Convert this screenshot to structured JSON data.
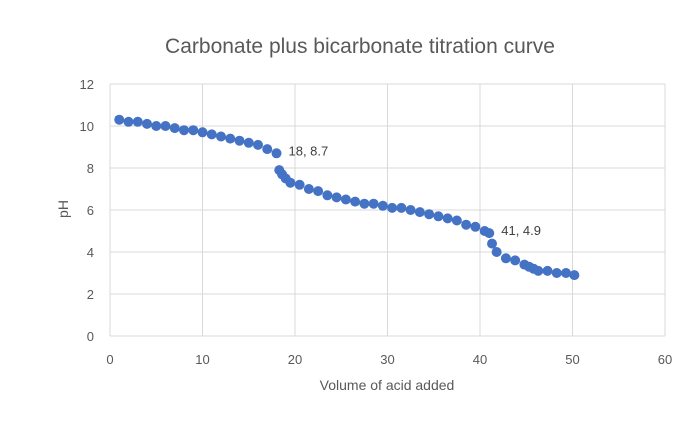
{
  "chart_data": {
    "type": "scatter",
    "title": "Carbonate plus bicarbonate titration curve",
    "xlabel": "Volume of acid added",
    "ylabel": "pH",
    "xlim": [
      0,
      60
    ],
    "ylim": [
      0,
      12
    ],
    "xticks": [
      0,
      10,
      20,
      30,
      40,
      50,
      60
    ],
    "yticks": [
      0,
      2,
      4,
      6,
      8,
      10,
      12
    ],
    "grid": true,
    "legend": "none",
    "color": "#4472C4",
    "series": [
      {
        "x": [
          1,
          2,
          3,
          4,
          5,
          6,
          7,
          8,
          9,
          10,
          11,
          12,
          13,
          14,
          15,
          16,
          17,
          18,
          18.3,
          18.6,
          19,
          19.5,
          20.5,
          21.5,
          22.5,
          23.5,
          24.5,
          25.5,
          26.5,
          27.5,
          28.5,
          29.5,
          30.5,
          31.5,
          32.5,
          33.5,
          34.5,
          35.5,
          36.5,
          37.5,
          38.5,
          39.5,
          40.5,
          41,
          41.3,
          41.8,
          42.8,
          43.8,
          44.8,
          45.3,
          45.8,
          46.3,
          47.3,
          48.3,
          49.3,
          50.2
        ],
        "y": [
          10.3,
          10.2,
          10.2,
          10.1,
          10.0,
          10.0,
          9.9,
          9.8,
          9.8,
          9.7,
          9.6,
          9.5,
          9.4,
          9.3,
          9.2,
          9.1,
          8.9,
          8.7,
          7.9,
          7.7,
          7.5,
          7.3,
          7.2,
          7.0,
          6.9,
          6.7,
          6.6,
          6.5,
          6.4,
          6.3,
          6.3,
          6.2,
          6.1,
          6.1,
          6.0,
          5.9,
          5.8,
          5.7,
          5.6,
          5.5,
          5.3,
          5.2,
          5.0,
          4.9,
          4.4,
          4.0,
          3.7,
          3.6,
          3.4,
          3.3,
          3.2,
          3.1,
          3.1,
          3.0,
          3.0,
          2.9
        ]
      }
    ],
    "annotations": [
      {
        "text": "18, 8.7",
        "x": 18,
        "y": 8.7
      },
      {
        "text": "41, 4.9",
        "x": 41,
        "y": 4.9
      }
    ]
  }
}
